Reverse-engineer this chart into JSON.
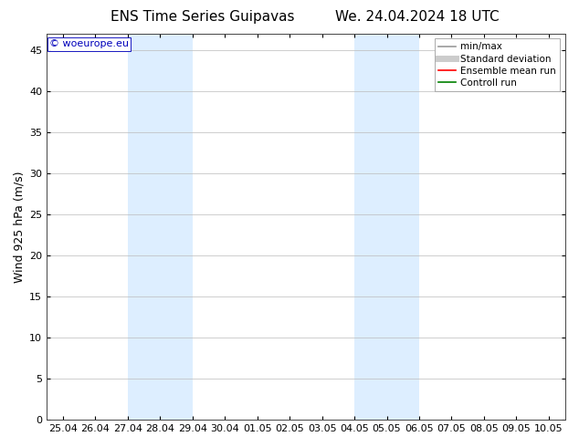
{
  "title_left": "ENS Time Series Guipavas",
  "title_right": "We. 24.04.2024 18 UTC",
  "ylabel": "Wind 925 hPa (m/s)",
  "watermark": "© woeurope.eu",
  "ylim": [
    0,
    47
  ],
  "yticks": [
    0,
    5,
    10,
    15,
    20,
    25,
    30,
    35,
    40,
    45
  ],
  "xtick_labels": [
    "25.04",
    "26.04",
    "27.04",
    "28.04",
    "29.04",
    "30.04",
    "01.05",
    "02.05",
    "03.05",
    "04.05",
    "05.05",
    "06.05",
    "07.05",
    "08.05",
    "09.05",
    "10.05"
  ],
  "xtick_positions": [
    0,
    1,
    2,
    3,
    4,
    5,
    6,
    7,
    8,
    9,
    10,
    11,
    12,
    13,
    14,
    15
  ],
  "xlim": [
    -0.5,
    15.5
  ],
  "shaded_regions": [
    {
      "xmin": 2,
      "xmax": 4,
      "color": "#ddeeff"
    },
    {
      "xmin": 9,
      "xmax": 11,
      "color": "#ddeeff"
    }
  ],
  "background_color": "#ffffff",
  "plot_bg_color": "#ffffff",
  "grid_color": "#bbbbbb",
  "legend_entries": [
    {
      "label": "min/max",
      "color": "#999999",
      "lw": 1.2,
      "style": "solid"
    },
    {
      "label": "Standard deviation",
      "color": "#cccccc",
      "lw": 5,
      "style": "solid"
    },
    {
      "label": "Ensemble mean run",
      "color": "#ff0000",
      "lw": 1.2,
      "style": "solid"
    },
    {
      "label": "Controll run",
      "color": "#008000",
      "lw": 1.2,
      "style": "solid"
    }
  ],
  "title_fontsize": 11,
  "label_fontsize": 9,
  "tick_fontsize": 8,
  "legend_fontsize": 7.5,
  "watermark_color": "#0000bb",
  "watermark_fontsize": 8
}
